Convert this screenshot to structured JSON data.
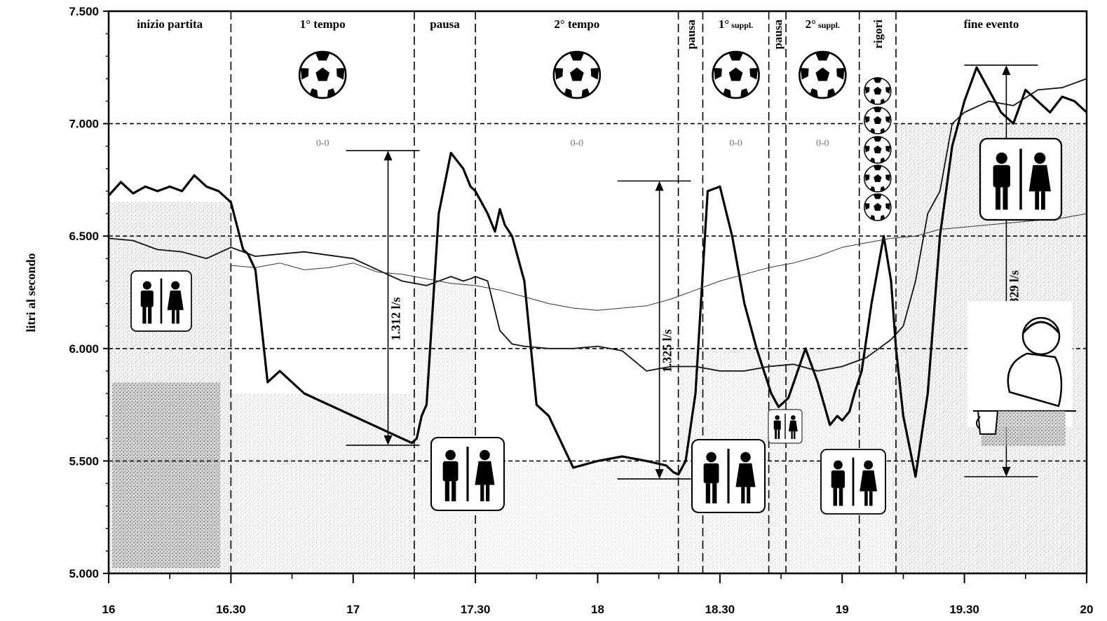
{
  "chart_data": {
    "type": "line",
    "ylabel": "litri al secondo",
    "ylim": [
      5000,
      7500
    ],
    "y_ticks": [
      "5.000",
      "5.500",
      "6.000",
      "6.500",
      "7.000",
      "7.500"
    ],
    "x_ticks": [
      "16",
      "16.30",
      "17",
      "17.30",
      "18",
      "18.30",
      "19",
      "19.30",
      "20"
    ],
    "grid_y": [
      5500,
      6000,
      6500,
      7000
    ],
    "phases": [
      {
        "label": "inizio partita",
        "x": 16.0
      },
      {
        "label": "1° tempo",
        "x": 16.5
      },
      {
        "label": "pausa",
        "x": 17.25
      },
      {
        "label": "2° tempo",
        "x": 17.5
      },
      {
        "label": "pausa",
        "x": 18.33,
        "vertical": true
      },
      {
        "label": "1°",
        "sub": "suppl.",
        "x": 18.43
      },
      {
        "label": "pausa",
        "x": 18.7,
        "vertical": true
      },
      {
        "label": "2°",
        "sub": "suppl.",
        "x": 18.77
      },
      {
        "label": "rigori",
        "x": 19.07,
        "vertical": true
      },
      {
        "label": "fine evento",
        "x": 19.22
      }
    ],
    "phase_boundaries": [
      16.5,
      17.25,
      17.5,
      18.33,
      18.43,
      18.7,
      18.77,
      19.07,
      19.22
    ],
    "scores": [
      "0-0",
      "0-0",
      "0-0",
      "0-0"
    ],
    "series": [
      {
        "style": "bold",
        "x": [
          16.0,
          16.05,
          16.1,
          16.15,
          16.2,
          16.25,
          16.3,
          16.35,
          16.4,
          16.45,
          16.5,
          16.55,
          16.57,
          16.6,
          16.65,
          16.7,
          16.8,
          16.9,
          17.0,
          17.1,
          17.2,
          17.24,
          17.26,
          17.28,
          17.3,
          17.35,
          17.4,
          17.45,
          17.48,
          17.5,
          17.55,
          17.58,
          17.6,
          17.62,
          17.65,
          17.7,
          17.75,
          17.8,
          17.9,
          18.0,
          18.1,
          18.2,
          18.28,
          18.31,
          18.33,
          18.36,
          18.4,
          18.45,
          18.5,
          18.55,
          18.6,
          18.65,
          18.68,
          18.71,
          18.74,
          18.78,
          18.85,
          18.9,
          18.95,
          18.98,
          19.0,
          19.03,
          19.05,
          19.08,
          19.12,
          19.17,
          19.2,
          19.22,
          19.25,
          19.3,
          19.35,
          19.4,
          19.45,
          19.5,
          19.55,
          19.6,
          19.65,
          19.7,
          19.75,
          19.8,
          19.85,
          19.9,
          19.95,
          20.0
        ],
        "y": [
          6680,
          6740,
          6690,
          6720,
          6700,
          6720,
          6700,
          6770,
          6720,
          6700,
          6650,
          6440,
          6420,
          6350,
          5850,
          5900,
          5800,
          5750,
          5700,
          5650,
          5600,
          5580,
          5600,
          5700,
          5750,
          6600,
          6870,
          6800,
          6720,
          6700,
          6600,
          6520,
          6620,
          6550,
          6500,
          6300,
          5750,
          5700,
          5470,
          5500,
          5520,
          5500,
          5480,
          5450,
          5440,
          5500,
          5800,
          6700,
          6720,
          6500,
          6200,
          6000,
          5900,
          5800,
          5740,
          5780,
          6000,
          5850,
          5660,
          5700,
          5680,
          5720,
          5800,
          5900,
          6200,
          6500,
          6300,
          6000,
          5700,
          5430,
          5800,
          6500,
          6900,
          7100,
          7250,
          7150,
          7050,
          7000,
          7150,
          7100,
          7050,
          7120,
          7100,
          7050
        ]
      },
      {
        "style": "medium",
        "x": [
          16.0,
          16.1,
          16.2,
          16.3,
          16.4,
          16.5,
          16.6,
          16.7,
          16.8,
          17.0,
          17.1,
          17.2,
          17.3,
          17.4,
          17.45,
          17.48,
          17.5,
          17.55,
          17.6,
          17.65,
          17.7,
          17.8,
          17.9,
          18.0,
          18.1,
          18.2,
          18.3,
          18.4,
          18.5,
          18.6,
          18.7,
          18.8,
          18.9,
          19.0,
          19.05,
          19.1,
          19.15,
          19.2,
          19.25,
          19.3,
          19.35,
          19.4,
          19.45,
          19.5,
          19.6,
          19.7,
          19.8,
          19.9,
          20.0
        ],
        "y": [
          6490,
          6480,
          6440,
          6430,
          6400,
          6450,
          6410,
          6420,
          6430,
          6400,
          6350,
          6300,
          6280,
          6320,
          6300,
          6310,
          6320,
          6300,
          6080,
          6020,
          6010,
          6000,
          6000,
          6010,
          5990,
          5900,
          5920,
          5920,
          5900,
          5900,
          5920,
          5930,
          5900,
          5920,
          5940,
          5960,
          6000,
          6040,
          6100,
          6300,
          6600,
          6700,
          7000,
          7050,
          7100,
          7080,
          7150,
          7160,
          7200
        ]
      },
      {
        "style": "thin",
        "x": [
          16.5,
          16.6,
          16.7,
          16.8,
          16.9,
          17.0,
          17.1,
          17.2,
          17.3,
          17.4,
          17.5,
          17.6,
          17.7,
          17.8,
          17.9,
          18.0,
          18.1,
          18.2,
          18.3,
          18.4,
          18.5,
          18.6,
          18.7,
          18.8,
          18.9,
          19.0,
          19.1,
          19.2,
          19.3,
          19.4,
          19.5,
          19.6,
          19.7,
          19.8,
          19.9,
          20.0
        ],
        "y": [
          6370,
          6360,
          6380,
          6350,
          6360,
          6380,
          6340,
          6330,
          6310,
          6290,
          6280,
          6260,
          6230,
          6200,
          6180,
          6170,
          6180,
          6190,
          6220,
          6260,
          6300,
          6330,
          6360,
          6380,
          6410,
          6450,
          6470,
          6490,
          6500,
          6530,
          6540,
          6550,
          6560,
          6570,
          6580,
          6600
        ]
      }
    ],
    "annotations": [
      {
        "label": "1.312 l/s",
        "x": 17.2,
        "from": 5570,
        "to": 6880
      },
      {
        "label": "1.325 l/s",
        "x": 18.31,
        "from": 5420,
        "to": 6745
      },
      {
        "label": "1.829 l/s",
        "x": 19.7,
        "from": 5430,
        "to": 7260
      }
    ]
  }
}
